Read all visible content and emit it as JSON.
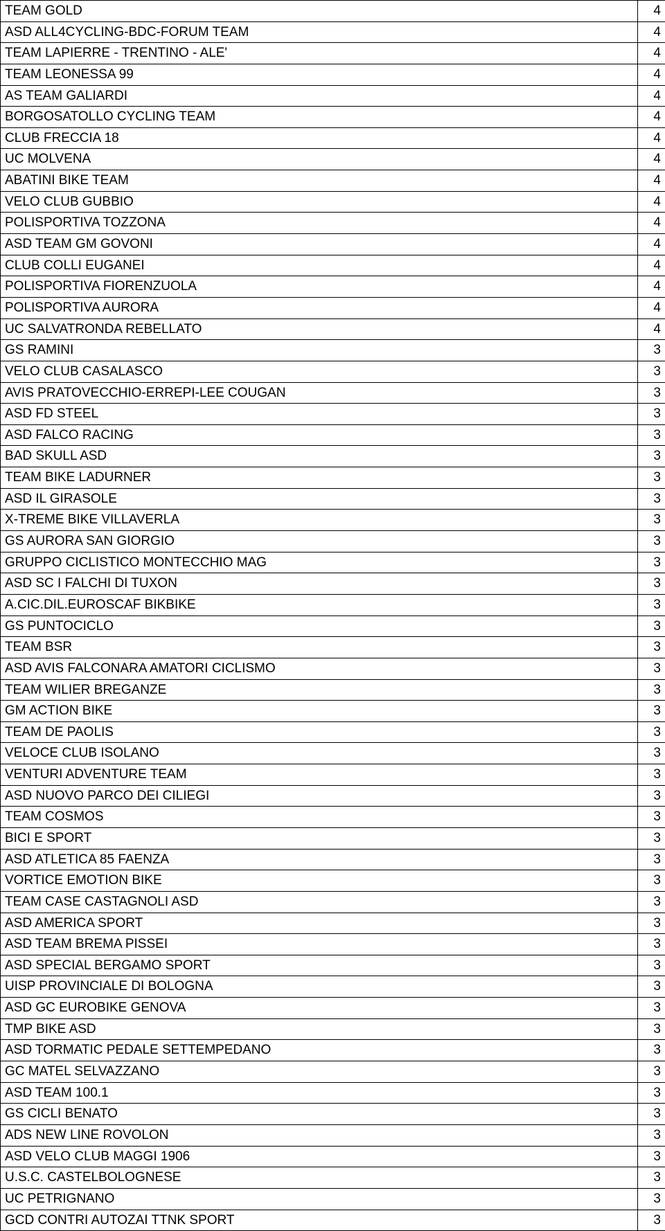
{
  "table": {
    "rows": [
      {
        "name": "TEAM GOLD",
        "value": "4"
      },
      {
        "name": "ASD ALL4CYCLING-BDC-FORUM TEAM",
        "value": "4"
      },
      {
        "name": "TEAM LAPIERRE - TRENTINO - ALE'",
        "value": "4"
      },
      {
        "name": "TEAM LEONESSA 99",
        "value": "4"
      },
      {
        "name": "AS TEAM GALIARDI",
        "value": "4"
      },
      {
        "name": "BORGOSATOLLO CYCLING TEAM",
        "value": "4"
      },
      {
        "name": "CLUB FRECCIA 18",
        "value": "4"
      },
      {
        "name": "UC MOLVENA",
        "value": "4"
      },
      {
        "name": "ABATINI BIKE TEAM",
        "value": "4"
      },
      {
        "name": "VELO CLUB GUBBIO",
        "value": "4"
      },
      {
        "name": "POLISPORTIVA TOZZONA",
        "value": "4"
      },
      {
        "name": "ASD TEAM GM GOVONI",
        "value": "4"
      },
      {
        "name": "CLUB COLLI EUGANEI",
        "value": "4"
      },
      {
        "name": "POLISPORTIVA FIORENZUOLA",
        "value": "4"
      },
      {
        "name": "POLISPORTIVA AURORA",
        "value": "4"
      },
      {
        "name": "UC SALVATRONDA REBELLATO",
        "value": "4"
      },
      {
        "name": "GS RAMINI",
        "value": "3"
      },
      {
        "name": "VELO CLUB CASALASCO",
        "value": "3"
      },
      {
        "name": "AVIS PRATOVECCHIO-ERREPI-LEE COUGAN",
        "value": "3"
      },
      {
        "name": "ASD FD STEEL",
        "value": "3"
      },
      {
        "name": "ASD FALCO RACING",
        "value": "3"
      },
      {
        "name": "BAD SKULL ASD",
        "value": "3"
      },
      {
        "name": "TEAM BIKE LADURNER",
        "value": "3"
      },
      {
        "name": "ASD IL GIRASOLE",
        "value": "3"
      },
      {
        "name": "X-TREME BIKE VILLAVERLA",
        "value": "3"
      },
      {
        "name": "GS AURORA SAN GIORGIO",
        "value": "3"
      },
      {
        "name": "GRUPPO CICLISTICO MONTECCHIO MAG",
        "value": "3"
      },
      {
        "name": "ASD SC I FALCHI DI TUXON",
        "value": "3"
      },
      {
        "name": "A.CIC.DIL.EUROSCAF BIKBIKE",
        "value": "3"
      },
      {
        "name": "GS PUNTOCICLO",
        "value": "3"
      },
      {
        "name": "TEAM BSR",
        "value": "3"
      },
      {
        "name": "ASD AVIS FALCONARA AMATORI CICLISMO",
        "value": "3"
      },
      {
        "name": "TEAM WILIER BREGANZE",
        "value": "3"
      },
      {
        "name": "GM ACTION BIKE",
        "value": "3"
      },
      {
        "name": "TEAM DE PAOLIS",
        "value": "3"
      },
      {
        "name": "VELOCE CLUB ISOLANO",
        "value": "3"
      },
      {
        "name": "VENTURI ADVENTURE TEAM",
        "value": "3"
      },
      {
        "name": "ASD NUOVO PARCO DEI CILIEGI",
        "value": "3"
      },
      {
        "name": "TEAM COSMOS",
        "value": "3"
      },
      {
        "name": "BICI E SPORT",
        "value": "3"
      },
      {
        "name": "ASD ATLETICA 85 FAENZA",
        "value": "3"
      },
      {
        "name": "VORTICE EMOTION BIKE",
        "value": "3"
      },
      {
        "name": "TEAM CASE CASTAGNOLI ASD",
        "value": "3"
      },
      {
        "name": "ASD AMERICA SPORT",
        "value": "3"
      },
      {
        "name": "ASD TEAM BREMA PISSEI",
        "value": "3"
      },
      {
        "name": "ASD SPECIAL BERGAMO SPORT",
        "value": "3"
      },
      {
        "name": "UISP PROVINCIALE DI BOLOGNA",
        "value": "3"
      },
      {
        "name": "ASD GC EUROBIKE GENOVA",
        "value": "3"
      },
      {
        "name": "TMP BIKE ASD",
        "value": "3"
      },
      {
        "name": "ASD TORMATIC PEDALE SETTEMPEDANO",
        "value": "3"
      },
      {
        "name": "GC MATEL SELVAZZANO",
        "value": "3"
      },
      {
        "name": "ASD TEAM 100.1",
        "value": "3"
      },
      {
        "name": "GS CICLI BENATO",
        "value": "3"
      },
      {
        "name": "ADS NEW LINE ROVOLON",
        "value": "3"
      },
      {
        "name": "ASD VELO CLUB MAGGI 1906",
        "value": "3"
      },
      {
        "name": "U.S.C. CASTELBOLOGNESE",
        "value": "3"
      },
      {
        "name": "UC PETRIGNANO",
        "value": "3"
      },
      {
        "name": "GCD CONTRI AUTOZAI TTNK SPORT",
        "value": "3"
      }
    ],
    "col_widths": {
      "name": 920,
      "value": 40
    },
    "font_size": 19,
    "border_color": "#000000",
    "background_color": "#ffffff",
    "text_color": "#000000"
  }
}
